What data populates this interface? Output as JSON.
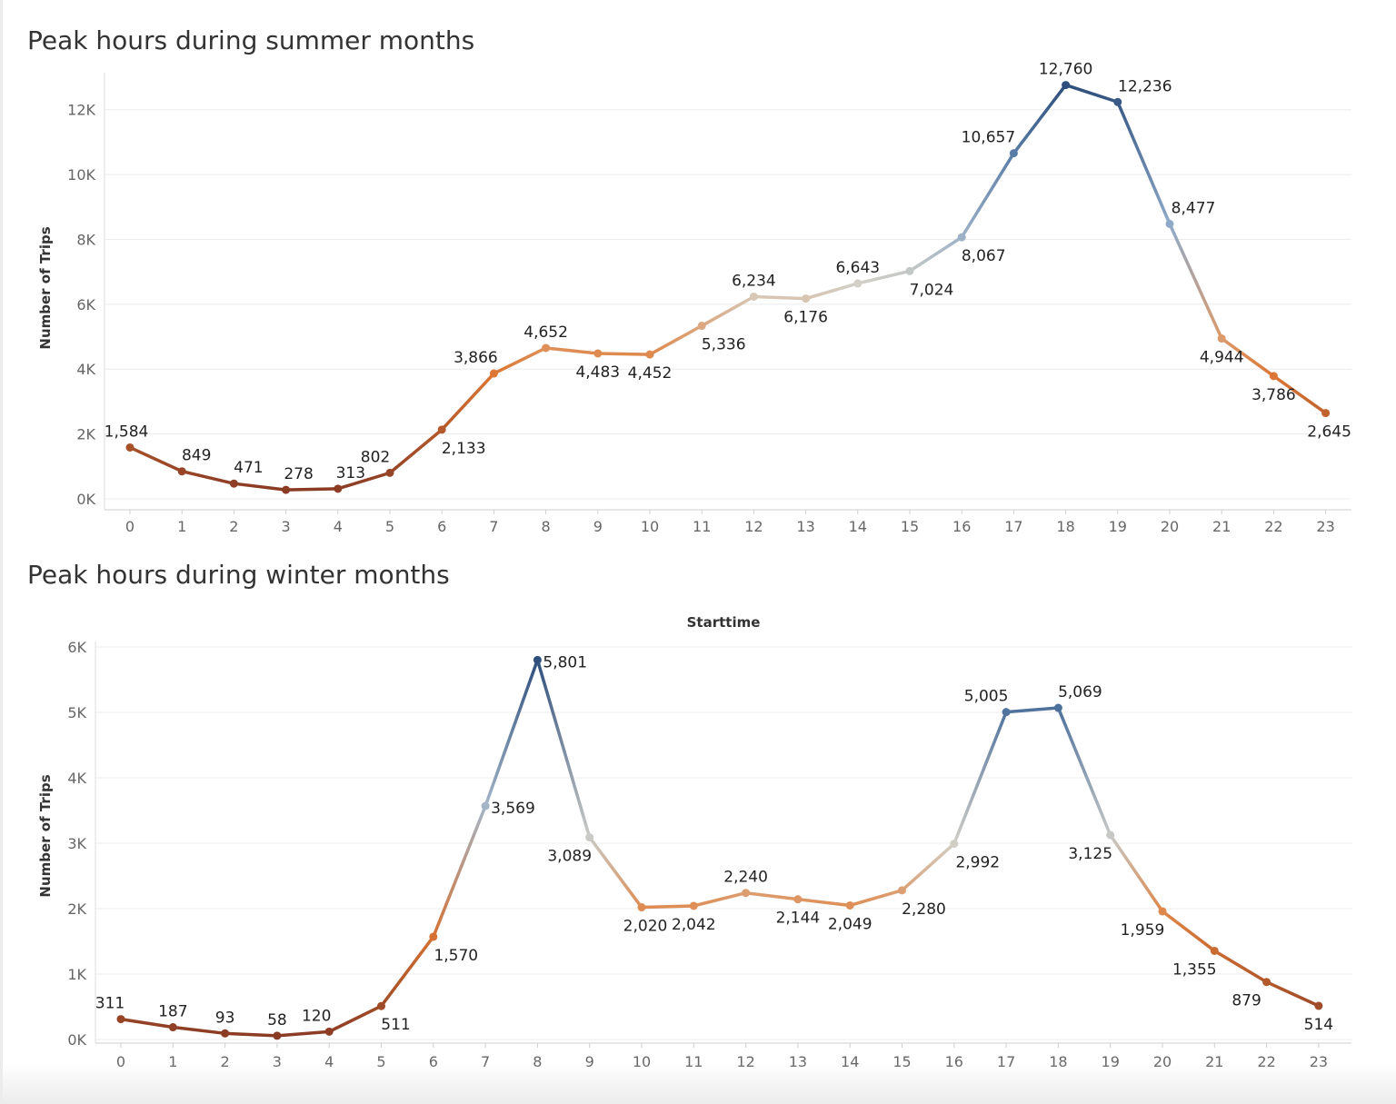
{
  "colors": {
    "dark_blue": "#2e4f7c",
    "light_blue": "#7a9fc8",
    "beige": "#d6d1c6",
    "orange": "#e07a35",
    "dark_red": "#8a3b23",
    "grid": "#ececec"
  },
  "chart_data": [
    {
      "type": "line",
      "title": "Peak hours during summer months",
      "ylabel": "Number of Trips",
      "xlabel": "",
      "x": [
        0,
        1,
        2,
        3,
        4,
        5,
        6,
        7,
        8,
        9,
        10,
        11,
        12,
        13,
        14,
        15,
        16,
        17,
        18,
        19,
        20,
        21,
        22,
        23
      ],
      "values": [
        1584,
        849,
        471,
        278,
        313,
        802,
        2133,
        3866,
        4652,
        4483,
        4452,
        5336,
        6234,
        6176,
        6643,
        7024,
        8067,
        10657,
        12760,
        12236,
        8477,
        4944,
        3786,
        2645
      ],
      "value_labels": [
        "1,584",
        "849",
        "471",
        "278",
        "313",
        "802",
        "2,133",
        "3,866",
        "4,652",
        "4,483",
        "4,452",
        "5,336",
        "6,234",
        "6,176",
        "6,643",
        "7,024",
        "8,067",
        "10,657",
        "12,760",
        "12,236",
        "8,477",
        "4,944",
        "3,786",
        "2,645"
      ],
      "ylim": [
        -250,
        13000
      ],
      "y_ticks": [
        0,
        2000,
        4000,
        6000,
        8000,
        10000,
        12000
      ],
      "y_tick_labels": [
        "0K",
        "2K",
        "4K",
        "6K",
        "8K",
        "10K",
        "12K"
      ],
      "color_scale": "diverging dark red - orange - beige - blue, by value",
      "grid": true
    },
    {
      "type": "line",
      "title": "Peak hours during winter months",
      "xlabel": "Starttime",
      "ylabel": "Number of Trips",
      "x": [
        0,
        1,
        2,
        3,
        4,
        5,
        6,
        7,
        8,
        9,
        10,
        11,
        12,
        13,
        14,
        15,
        16,
        17,
        18,
        19,
        20,
        21,
        22,
        23
      ],
      "values": [
        311,
        187,
        93,
        58,
        120,
        511,
        1570,
        3569,
        5801,
        3089,
        2020,
        2042,
        2240,
        2144,
        2049,
        2280,
        2992,
        5005,
        5069,
        3125,
        1959,
        1355,
        879,
        514
      ],
      "value_labels": [
        "311",
        "187",
        "93",
        "58",
        "120",
        "511",
        "1,570",
        "3,569",
        "5,801",
        "3,089",
        "2,020",
        "2,042",
        "2,240",
        "2,144",
        "2,049",
        "2,280",
        "2,992",
        "5,005",
        "5,069",
        "3,125",
        "1,959",
        "1,355",
        "879",
        "514"
      ],
      "ylim": [
        -150,
        6000
      ],
      "y_ticks": [
        0,
        1000,
        2000,
        3000,
        4000,
        5000,
        6000
      ],
      "y_tick_labels": [
        "0K",
        "1K",
        "2K",
        "3K",
        "4K",
        "5K",
        "6K"
      ],
      "color_scale": "diverging dark red - orange - beige - blue, by value",
      "grid": true
    }
  ]
}
